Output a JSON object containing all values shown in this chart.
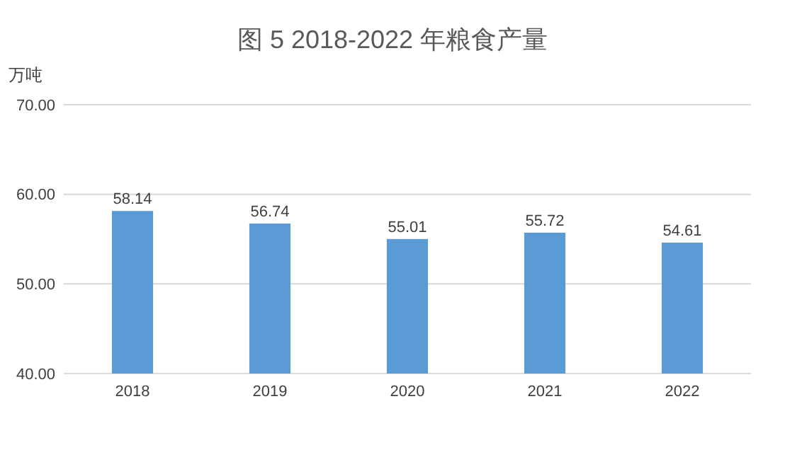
{
  "chart_data": {
    "type": "bar",
    "title": "图 5  2018-2022 年粮食产量",
    "ylabel": "万吨",
    "categories": [
      "2018",
      "2019",
      "2020",
      "2021",
      "2022"
    ],
    "values": [
      58.14,
      56.74,
      55.01,
      55.72,
      54.61
    ],
    "color": "#5b9bd5",
    "ylim": [
      40,
      70
    ],
    "yticks": [
      {
        "value": 40,
        "label": "40.00"
      },
      {
        "value": 50,
        "label": "50.00"
      },
      {
        "value": 60,
        "label": "60.00"
      },
      {
        "value": 70,
        "label": "70.00"
      }
    ],
    "grid": "y",
    "data_labels": true
  }
}
